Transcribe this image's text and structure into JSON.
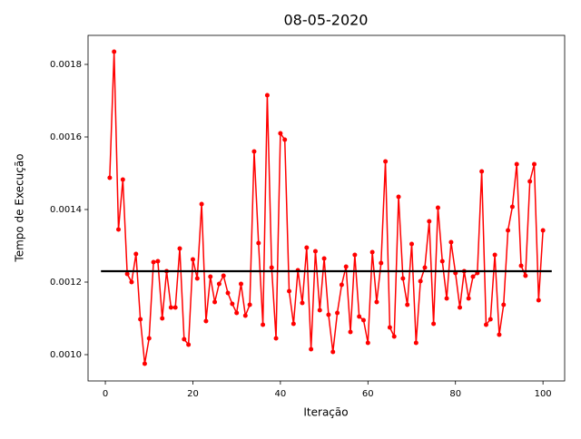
{
  "chart_data": {
    "type": "line",
    "title": "08-05-2020",
    "xlabel": "Iteração",
    "ylabel": "Tempo de Execução",
    "xlim": [
      -3.95,
      104.95
    ],
    "ylim": [
      0.0009275,
      0.00188
    ],
    "xticks": [
      0,
      20,
      40,
      60,
      80,
      100
    ],
    "yticks": [
      {
        "value": 0.001,
        "label": "0.0010"
      },
      {
        "value": 0.0012,
        "label": "0.0012"
      },
      {
        "value": 0.0014,
        "label": "0.0014"
      },
      {
        "value": 0.0016,
        "label": "0.0016"
      },
      {
        "value": 0.0018,
        "label": "0.0018"
      }
    ],
    "series": [
      {
        "color": "#ff0000",
        "marker": true,
        "x": [
          1,
          2,
          3,
          4,
          5,
          6,
          7,
          8,
          9,
          10,
          11,
          12,
          13,
          14,
          15,
          16,
          17,
          18,
          19,
          20,
          21,
          22,
          23,
          24,
          25,
          26,
          27,
          28,
          29,
          30,
          31,
          32,
          33,
          34,
          35,
          36,
          37,
          38,
          39,
          40,
          41,
          42,
          43,
          44,
          45,
          46,
          47,
          48,
          49,
          50,
          51,
          52,
          53,
          54,
          55,
          56,
          57,
          58,
          59,
          60,
          61,
          62,
          63,
          64,
          65,
          66,
          67,
          68,
          69,
          70,
          71,
          72,
          73,
          74,
          75,
          76,
          77,
          78,
          79,
          80,
          81,
          82,
          83,
          84,
          85,
          86,
          87,
          88,
          89,
          90,
          91,
          92,
          93,
          94,
          95,
          96,
          97,
          98,
          99,
          100
        ],
        "values": [
          0.0014875,
          0.001835,
          0.001345,
          0.0014825,
          0.0012225,
          0.0012,
          0.0012775,
          0.0010975,
          0.000975,
          0.001045,
          0.001255,
          0.0012575,
          0.0011,
          0.00123,
          0.00113,
          0.00113,
          0.0012925,
          0.0010425,
          0.0010275,
          0.0012625,
          0.00121,
          0.001415,
          0.0010925,
          0.001215,
          0.001145,
          0.001195,
          0.0012175,
          0.00117,
          0.00114,
          0.001115,
          0.001195,
          0.0011075,
          0.0011375,
          0.00156,
          0.0013075,
          0.0010825,
          0.001715,
          0.00124,
          0.001045,
          0.00161,
          0.0015925,
          0.001175,
          0.001085,
          0.0012325,
          0.0011425,
          0.001295,
          0.001015,
          0.001285,
          0.0011225,
          0.001265,
          0.00111,
          0.0010075,
          0.001115,
          0.0011925,
          0.0012425,
          0.0010625,
          0.001275,
          0.001105,
          0.001095,
          0.0010325,
          0.0012825,
          0.001145,
          0.0012525,
          0.0015325,
          0.001075,
          0.00105,
          0.001435,
          0.00121,
          0.0011375,
          0.001305,
          0.0010325,
          0.0012025,
          0.00124,
          0.0013675,
          0.001085,
          0.001405,
          0.0012575,
          0.001155,
          0.00131,
          0.001225,
          0.00113,
          0.00123,
          0.001155,
          0.001215,
          0.001225,
          0.001505,
          0.0010825,
          0.0010975,
          0.001275,
          0.001055,
          0.0011375,
          0.0013425,
          0.0014075,
          0.001525,
          0.001245,
          0.0012175,
          0.0014775,
          0.001525,
          0.00115,
          0.0013425
        ]
      },
      {
        "color": "#000000",
        "marker": false,
        "x": [
          -1,
          102
        ],
        "values": [
          0.00123,
          0.00123
        ]
      }
    ]
  }
}
